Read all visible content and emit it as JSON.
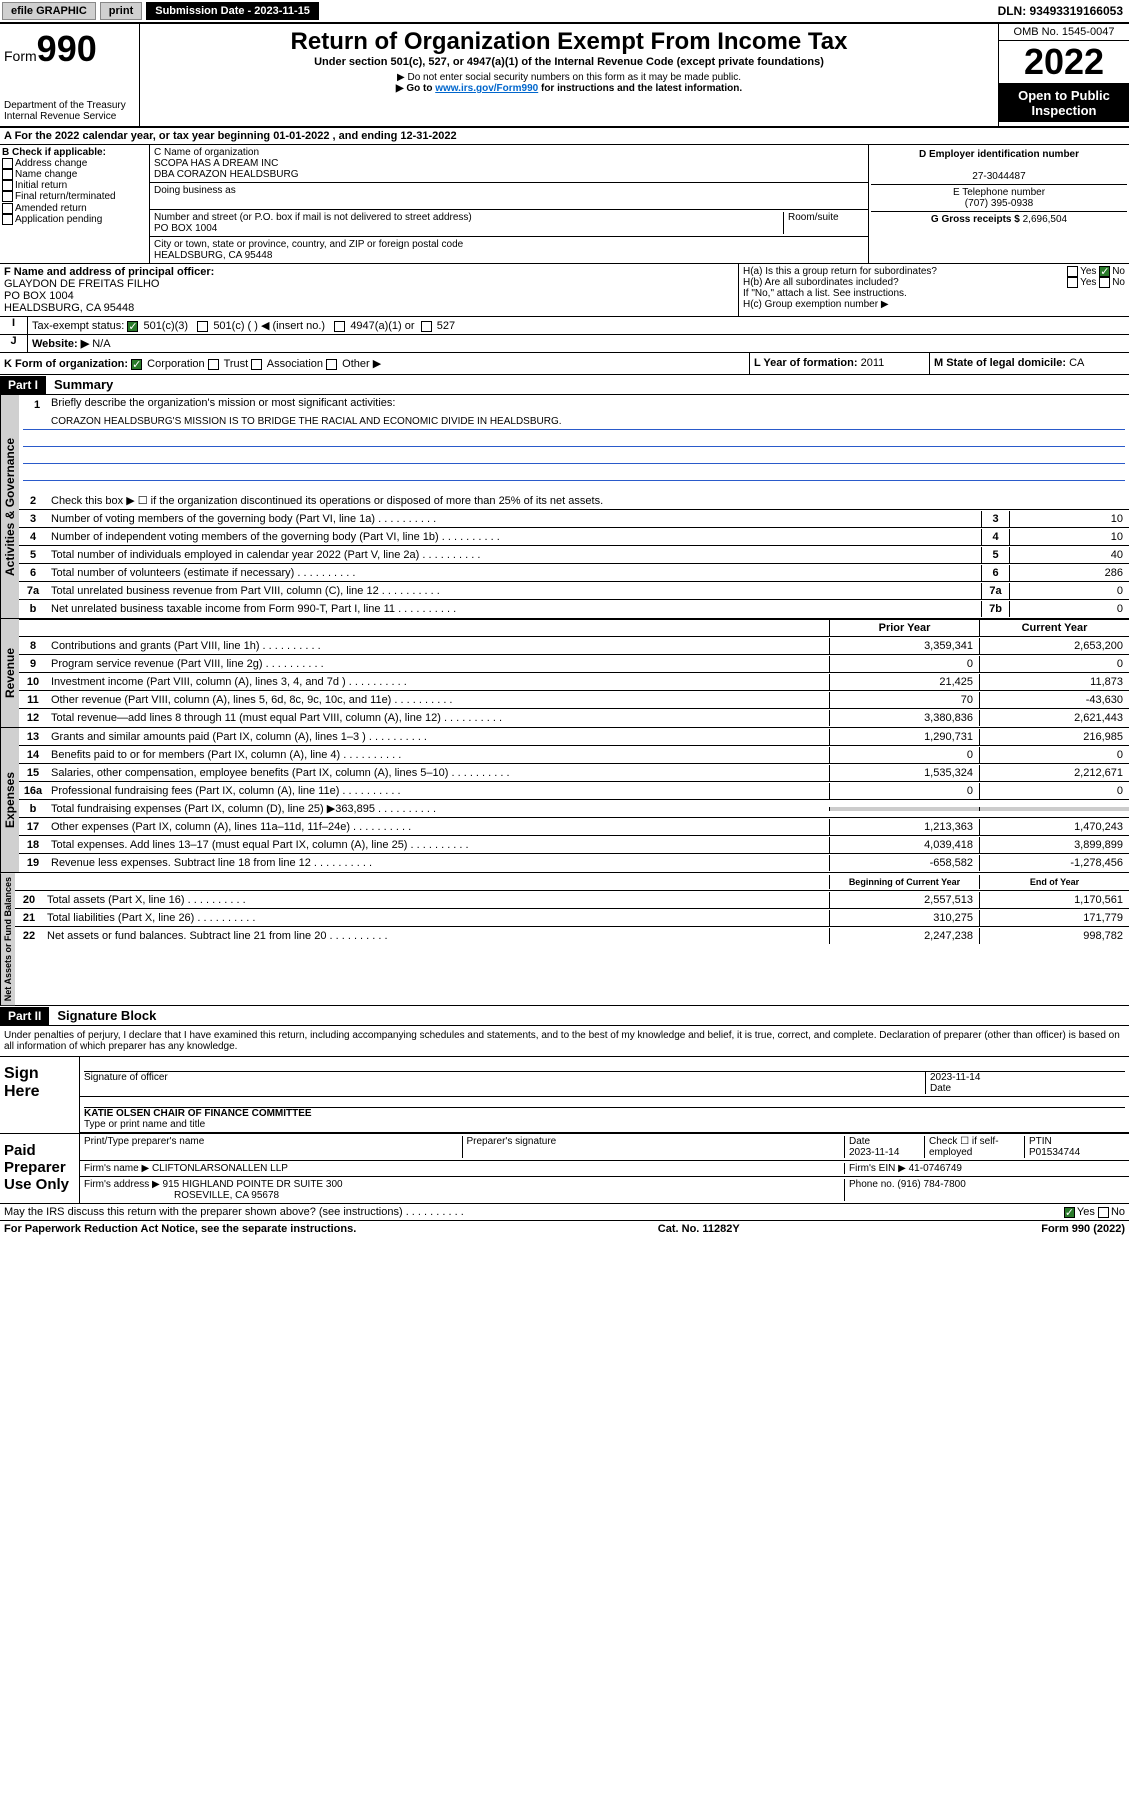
{
  "topbar": {
    "efile": "efile GRAPHIC",
    "print": "print",
    "sub_label": "Submission Date - 2023-11-15",
    "dln": "DLN: 93493319166053"
  },
  "header": {
    "form_label": "Form",
    "form_num": "990",
    "dept": "Department of the Treasury",
    "irs": "Internal Revenue Service",
    "title": "Return of Organization Exempt From Income Tax",
    "subtitle": "Under section 501(c), 527, or 4947(a)(1) of the Internal Revenue Code (except private foundations)",
    "note1": "▶ Do not enter social security numbers on this form as it may be made public.",
    "note2_pre": "▶ Go to ",
    "note2_link": "www.irs.gov/Form990",
    "note2_post": " for instructions and the latest information.",
    "omb": "OMB No. 1545-0047",
    "year": "2022",
    "open": "Open to Public Inspection"
  },
  "row_a": "A For the 2022 calendar year, or tax year beginning 01-01-2022   , and ending 12-31-2022",
  "box_b": {
    "label": "B Check if applicable:",
    "items": [
      "Address change",
      "Name change",
      "Initial return",
      "Final return/terminated",
      "Amended return",
      "Application pending"
    ]
  },
  "box_c": {
    "name_label": "C Name of organization",
    "name1": "SCOPA HAS A DREAM INC",
    "name2": "DBA CORAZON HEALDSBURG",
    "dba_label": "Doing business as",
    "addr_label": "Number and street (or P.O. box if mail is not delivered to street address)",
    "room_label": "Room/suite",
    "addr": "PO BOX 1004",
    "city_label": "City or town, state or province, country, and ZIP or foreign postal code",
    "city": "HEALDSBURG, CA  95448"
  },
  "box_d": {
    "label": "D Employer identification number",
    "val": "27-3044487"
  },
  "box_e": {
    "label": "E Telephone number",
    "val": "(707) 395-0938"
  },
  "box_g": {
    "label": "G Gross receipts $",
    "val": "2,696,504"
  },
  "box_f": {
    "label": "F Name and address of principal officer:",
    "name": "GLAYDON DE FREITAS FILHO",
    "addr": "PO BOX 1004",
    "city": "HEALDSBURG, CA  95448"
  },
  "box_h": {
    "a_label": "H(a)  Is this a group return for subordinates?",
    "b_label": "H(b)  Are all subordinates included?",
    "note": "If \"No,\" attach a list. See instructions.",
    "c_label": "H(c)  Group exemption number ▶"
  },
  "box_i": {
    "label": "Tax-exempt status:",
    "o1": "501(c)(3)",
    "o2": "501(c) (  ) ◀ (insert no.)",
    "o3": "4947(a)(1) or",
    "o4": "527"
  },
  "box_j": {
    "label": "Website: ▶",
    "val": "N/A"
  },
  "box_k": {
    "label": "K Form of organization:",
    "o1": "Corporation",
    "o2": "Trust",
    "o3": "Association",
    "o4": "Other ▶"
  },
  "box_l": {
    "label": "L Year of formation:",
    "val": "2011"
  },
  "box_m": {
    "label": "M State of legal domicile:",
    "val": "CA"
  },
  "part1": {
    "title": "Part I",
    "subtitle": "Summary",
    "l1_label": "Briefly describe the organization's mission or most significant activities:",
    "l1_text": "CORAZON HEALDSBURG'S MISSION IS TO BRIDGE THE RACIAL AND ECONOMIC DIVIDE IN HEALDSBURG.",
    "l2": "Check this box ▶ ☐  if the organization discontinued its operations or disposed of more than 25% of its net assets.",
    "gov": {
      "label": "Activities & Governance",
      "lines": [
        {
          "n": "3",
          "t": "Number of voting members of the governing body (Part VI, line 1a)",
          "b": "3",
          "v": "10"
        },
        {
          "n": "4",
          "t": "Number of independent voting members of the governing body (Part VI, line 1b)",
          "b": "4",
          "v": "10"
        },
        {
          "n": "5",
          "t": "Total number of individuals employed in calendar year 2022 (Part V, line 2a)",
          "b": "5",
          "v": "40"
        },
        {
          "n": "6",
          "t": "Total number of volunteers (estimate if necessary)",
          "b": "6",
          "v": "286"
        },
        {
          "n": "7a",
          "t": "Total unrelated business revenue from Part VIII, column (C), line 12",
          "b": "7a",
          "v": "0"
        },
        {
          "n": "b",
          "t": "Net unrelated business taxable income from Form 990-T, Part I, line 11",
          "b": "7b",
          "v": "0"
        }
      ]
    },
    "rev": {
      "label": "Revenue",
      "prior": "Prior Year",
      "current": "Current Year",
      "lines": [
        {
          "n": "8",
          "t": "Contributions and grants (Part VIII, line 1h)",
          "p": "3,359,341",
          "c": "2,653,200"
        },
        {
          "n": "9",
          "t": "Program service revenue (Part VIII, line 2g)",
          "p": "0",
          "c": "0"
        },
        {
          "n": "10",
          "t": "Investment income (Part VIII, column (A), lines 3, 4, and 7d )",
          "p": "21,425",
          "c": "11,873"
        },
        {
          "n": "11",
          "t": "Other revenue (Part VIII, column (A), lines 5, 6d, 8c, 9c, 10c, and 11e)",
          "p": "70",
          "c": "-43,630"
        },
        {
          "n": "12",
          "t": "Total revenue—add lines 8 through 11 (must equal Part VIII, column (A), line 12)",
          "p": "3,380,836",
          "c": "2,621,443"
        }
      ]
    },
    "exp": {
      "label": "Expenses",
      "lines": [
        {
          "n": "13",
          "t": "Grants and similar amounts paid (Part IX, column (A), lines 1–3 )",
          "p": "1,290,731",
          "c": "216,985"
        },
        {
          "n": "14",
          "t": "Benefits paid to or for members (Part IX, column (A), line 4)",
          "p": "0",
          "c": "0"
        },
        {
          "n": "15",
          "t": "Salaries, other compensation, employee benefits (Part IX, column (A), lines 5–10)",
          "p": "1,535,324",
          "c": "2,212,671"
        },
        {
          "n": "16a",
          "t": "Professional fundraising fees (Part IX, column (A), line 11e)",
          "p": "0",
          "c": "0"
        },
        {
          "n": "b",
          "t": "Total fundraising expenses (Part IX, column (D), line 25) ▶363,895",
          "p": "",
          "c": "",
          "shade": true
        },
        {
          "n": "17",
          "t": "Other expenses (Part IX, column (A), lines 11a–11d, 11f–24e)",
          "p": "1,213,363",
          "c": "1,470,243"
        },
        {
          "n": "18",
          "t": "Total expenses. Add lines 13–17 (must equal Part IX, column (A), line 25)",
          "p": "4,039,418",
          "c": "3,899,899"
        },
        {
          "n": "19",
          "t": "Revenue less expenses. Subtract line 18 from line 12",
          "p": "-658,582",
          "c": "-1,278,456"
        }
      ]
    },
    "net": {
      "label": "Net Assets or Fund Balances",
      "prior": "Beginning of Current Year",
      "current": "End of Year",
      "lines": [
        {
          "n": "20",
          "t": "Total assets (Part X, line 16)",
          "p": "2,557,513",
          "c": "1,170,561"
        },
        {
          "n": "21",
          "t": "Total liabilities (Part X, line 26)",
          "p": "310,275",
          "c": "171,779"
        },
        {
          "n": "22",
          "t": "Net assets or fund balances. Subtract line 21 from line 20",
          "p": "2,247,238",
          "c": "998,782"
        }
      ]
    }
  },
  "part2": {
    "title": "Part II",
    "subtitle": "Signature Block",
    "decl": "Under penalties of perjury, I declare that I have examined this return, including accompanying schedules and statements, and to the best of my knowledge and belief, it is true, correct, and complete. Declaration of preparer (other than officer) is based on all information of which preparer has any knowledge.",
    "sign_here": "Sign Here",
    "sig_officer": "Signature of officer",
    "sig_date": "2023-11-14",
    "date_label": "Date",
    "officer_name": "KATIE OLSEN CHAIR OF FINANCE COMMITTEE",
    "officer_label": "Type or print name and title",
    "paid": "Paid Preparer Use Only",
    "prep_name_label": "Print/Type preparer's name",
    "prep_sig_label": "Preparer's signature",
    "prep_date_label": "Date",
    "prep_date": "2023-11-14",
    "self_emp": "Check ☐ if self-employed",
    "ptin_label": "PTIN",
    "ptin": "P01534744",
    "firm_name_label": "Firm's name      ▶",
    "firm_name": "CLIFTONLARSONALLEN LLP",
    "firm_ein_label": "Firm's EIN ▶",
    "firm_ein": "41-0746749",
    "firm_addr_label": "Firm's address ▶",
    "firm_addr1": "915 HIGHLAND POINTE DR SUITE 300",
    "firm_addr2": "ROSEVILLE, CA  95678",
    "phone_label": "Phone no.",
    "phone": "(916) 784-7800",
    "discuss": "May the IRS discuss this return with the preparer shown above? (see instructions)"
  },
  "footer": {
    "left": "For Paperwork Reduction Act Notice, see the separate instructions.",
    "center": "Cat. No. 11282Y",
    "right": "Form 990 (2022)"
  }
}
